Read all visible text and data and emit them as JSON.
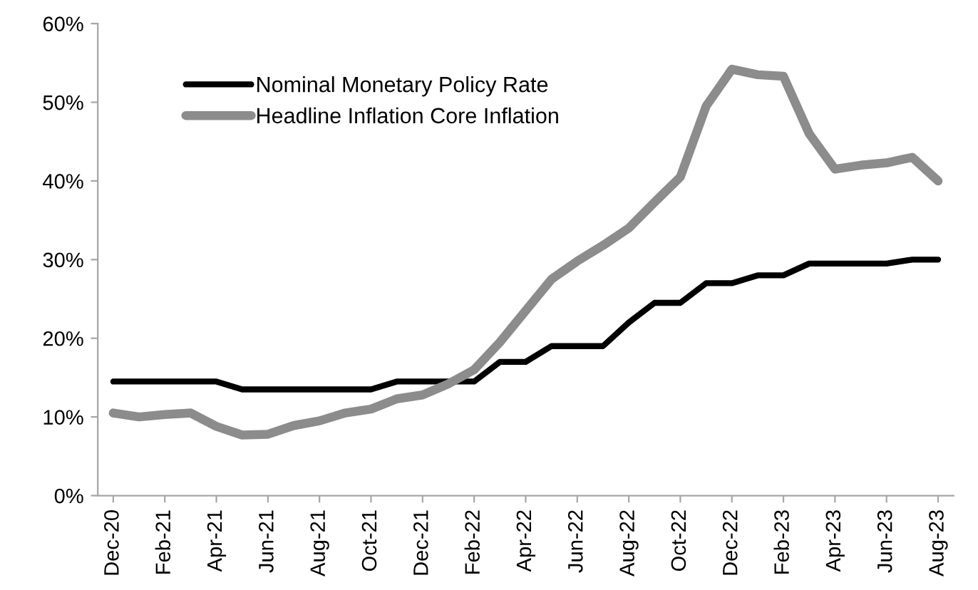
{
  "chart_data": {
    "type": "line",
    "categories": [
      "Dec-20",
      null,
      "Feb-21",
      null,
      "Apr-21",
      null,
      "Jun-21",
      null,
      "Aug-21",
      null,
      "Oct-21",
      null,
      "Dec-21",
      null,
      "Feb-22",
      null,
      "Apr-22",
      null,
      "Jun-22",
      null,
      "Aug-22",
      null,
      "Oct-22",
      null,
      "Dec-22",
      null,
      "Feb-23",
      null,
      "Apr-23",
      null,
      "Jun-23",
      null,
      "Aug-23"
    ],
    "series": [
      {
        "name": "Nominal Monetary Policy Rate",
        "color": "#000000",
        "values": [
          14.5,
          14.5,
          14.5,
          14.5,
          14.5,
          13.5,
          13.5,
          13.5,
          13.5,
          13.5,
          13.5,
          14.5,
          14.5,
          14.5,
          14.5,
          17,
          17,
          19,
          19,
          19,
          22,
          24.5,
          24.5,
          27,
          27,
          28,
          28,
          29.5,
          29.5,
          29.5,
          29.5,
          30,
          30
        ]
      },
      {
        "name": "Headline Inflation Core Inflation",
        "color": "#8c8c8c",
        "values": [
          10.5,
          10,
          10.3,
          10.5,
          8.8,
          7.7,
          7.8,
          8.9,
          9.5,
          10.5,
          11,
          12.3,
          12.8,
          14.2,
          16,
          19.5,
          23.5,
          27.5,
          29.8,
          31.8,
          34,
          37.3,
          40.5,
          49.5,
          54.2,
          53.5,
          53.3,
          46,
          41.5,
          42,
          42.3,
          43,
          40
        ]
      }
    ],
    "ylim": [
      0,
      60
    ],
    "yticks": [
      {
        "value": 0,
        "label": "0%"
      },
      {
        "value": 10,
        "label": "10%"
      },
      {
        "value": 20,
        "label": "20%"
      },
      {
        "value": 30,
        "label": "30%"
      },
      {
        "value": 40,
        "label": "40%"
      },
      {
        "value": 50,
        "label": "50%"
      },
      {
        "value": 60,
        "label": "60%"
      }
    ],
    "grid": false,
    "legend": "top left",
    "marker": "none",
    "line_style": "solid"
  }
}
